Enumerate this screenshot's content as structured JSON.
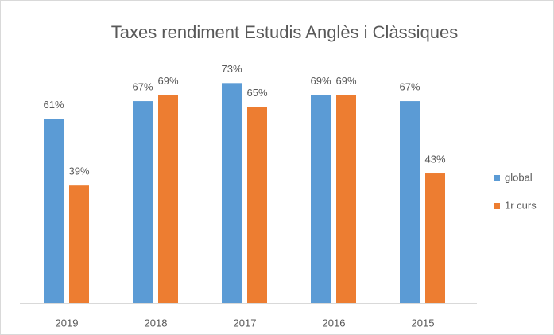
{
  "chart_data": {
    "type": "bar",
    "title": "Taxes rendiment Estudis Anglès i Clàssiques",
    "categories": [
      "2019",
      "2018",
      "2017",
      "2016",
      "2015"
    ],
    "series": [
      {
        "name": "global",
        "color": "#5b9bd5",
        "values": [
          61,
          67,
          73,
          69,
          67
        ],
        "value_labels": [
          "61%",
          "67%",
          "73%",
          "69%",
          "67%"
        ]
      },
      {
        "name": "1r curs",
        "color": "#ed7d31",
        "values": [
          39,
          69,
          65,
          69,
          43
        ],
        "value_labels": [
          "39%",
          "69%",
          "65%",
          "69%",
          "43%"
        ]
      }
    ],
    "legend": "right"
  }
}
